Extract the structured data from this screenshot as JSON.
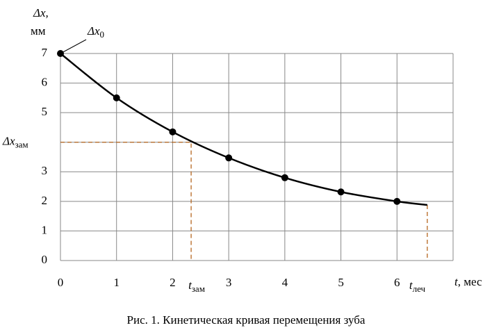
{
  "chart_data": {
    "type": "line",
    "caption": "Рис. 1. Кинетическая кривая перемещения зуба",
    "y_label": "Δx,",
    "y_unit": "мм",
    "x_label": "t",
    "x_label_unit": ", мес",
    "x": [
      0,
      1,
      2,
      3,
      4,
      5,
      6
    ],
    "series": [
      {
        "color": "#000000",
        "values": [
          7,
          5.5,
          4.35,
          3.47,
          2.8,
          2.32,
          2.0
        ]
      }
    ],
    "curve_end": {
      "x": 6.54,
      "y": 1.88
    },
    "start_annotation": {
      "label": "Δx",
      "sub": "0"
    },
    "t_zam": {
      "x": 2.33,
      "y": 4,
      "label": "t",
      "sub": "зам"
    },
    "t_lech": {
      "x": 6.54,
      "label": "t",
      "sub": "леч"
    },
    "xlim": [
      0,
      7
    ],
    "ylim": [
      0,
      7
    ],
    "xticks": [
      0,
      1,
      2,
      3,
      4,
      5,
      6
    ],
    "yticks": [
      0,
      1,
      2,
      3,
      {
        "value": 4,
        "label": "Δx",
        "label_sub": "зам"
      },
      5,
      6,
      7
    ],
    "grid": true,
    "dash_color": "#b5651d"
  }
}
